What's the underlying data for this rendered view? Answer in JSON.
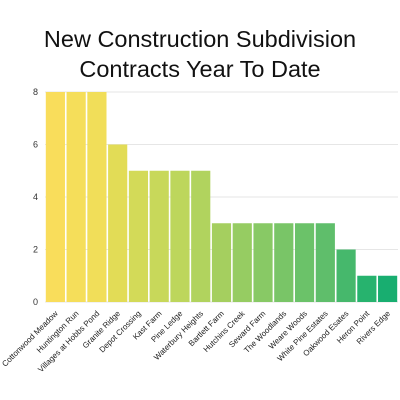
{
  "chart_data": {
    "type": "bar",
    "title_line1": "New Construction Subdivision",
    "title_line2": "Contracts Year To Date",
    "categories": [
      "Cottonwood Meadow",
      "Huntington Run",
      "Villages at Hobbs Pond",
      "Granite Ridge",
      "Depot Crossing",
      "Kast Farm",
      "Pine Ledge",
      "Waterbury Heights",
      "Bartlett Farm",
      "Hutchins Creek",
      "Seward Farm",
      "The Woodlands",
      "Weare Woods",
      "White Pine Estates",
      "Oakwood Esates",
      "Heron Point",
      "Rivers Edge"
    ],
    "values": [
      8,
      8,
      8,
      6,
      5,
      5,
      5,
      5,
      3,
      3,
      3,
      3,
      3,
      3,
      2,
      1,
      1
    ],
    "colors": [
      "#f9dd5b",
      "#f5de5a",
      "#f1de59",
      "#e2dc56",
      "#d3da58",
      "#c8d85a",
      "#bdd65c",
      "#b1d35e",
      "#a5cf5f",
      "#96cc62",
      "#88c965",
      "#79c567",
      "#6bc269",
      "#5fbe6b",
      "#46b86c",
      "#27b36e",
      "#18ae70"
    ],
    "ylim": [
      0,
      8
    ],
    "yticks": [
      0,
      2,
      4,
      6,
      8
    ],
    "grid": true,
    "xlabel": "",
    "ylabel": ""
  }
}
